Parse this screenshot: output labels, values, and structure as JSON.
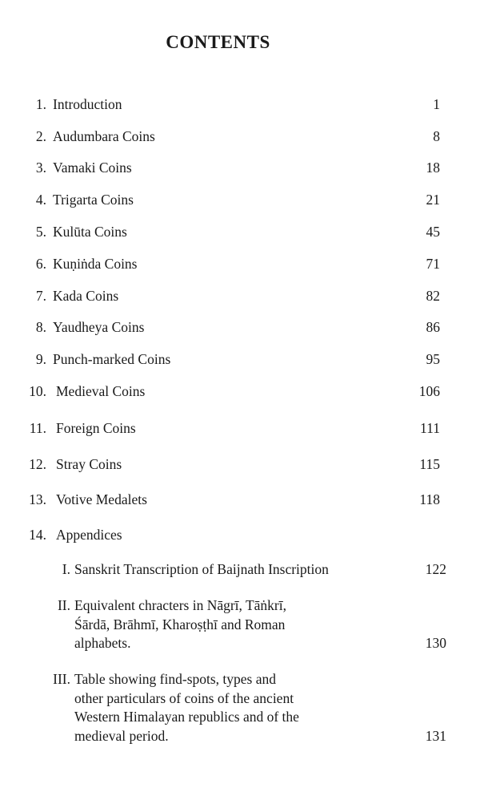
{
  "title": "CONTENTS",
  "entries": [
    {
      "num": "1.",
      "label": "Introduction",
      "page": "1"
    },
    {
      "num": "2.",
      "label": "Audumbara Coins",
      "page": "8"
    },
    {
      "num": "3.",
      "label": "Vamaki Coins",
      "page": "18"
    },
    {
      "num": "4.",
      "label": "Trigarta Coins",
      "page": "21"
    },
    {
      "num": "5.",
      "label": "Kulūta Coins",
      "page": "45"
    },
    {
      "num": "6.",
      "label": "Kuṇiṅda Coins",
      "page": "71"
    },
    {
      "num": "7.",
      "label": "Kada Coins",
      "page": "82"
    },
    {
      "num": "8.",
      "label": "Yaudheya Coins",
      "page": "86"
    },
    {
      "num": "9.",
      "label": "Punch-marked Coins",
      "page": "95"
    },
    {
      "num": "10.",
      "label": "Medieval Coins",
      "page": "106"
    },
    {
      "num": "11.",
      "label": "Foreign Coins",
      "page": "111"
    },
    {
      "num": "12.",
      "label": "Stray Coins",
      "page": "115"
    },
    {
      "num": "13.",
      "label": "Votive Medalets",
      "page": "118"
    },
    {
      "num": "14.",
      "label": "Appendices",
      "page": ""
    }
  ],
  "appendices": [
    {
      "num": "I.",
      "lines": [
        "Sanskrit Transcription of Baijnath Inscription"
      ],
      "page": "122"
    },
    {
      "num": "II.",
      "lines": [
        "Equivalent chracters in Nāgrī, Tāṅkrī,",
        "Śārdā, Brāhmī, Kharoṣṭhī and Roman",
        "alphabets."
      ],
      "page": "130"
    },
    {
      "num": "III.",
      "lines": [
        "Table showing find-spots, types and",
        "other particulars of coins of the ancient",
        "Western Himalayan republics and of the",
        "medieval period."
      ],
      "page": "131"
    }
  ]
}
